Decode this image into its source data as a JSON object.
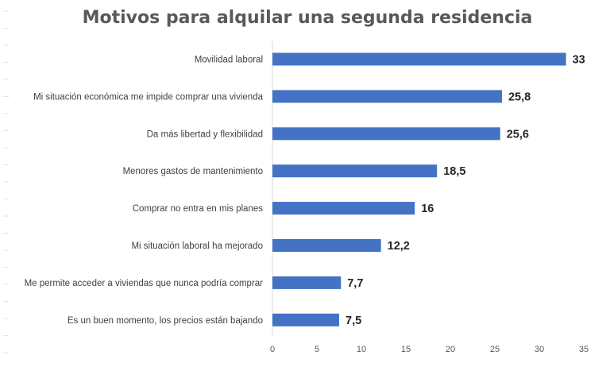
{
  "chart_data": {
    "type": "bar",
    "orientation": "horizontal",
    "title": "Motivos para alquilar una segunda residencia",
    "xlabel": "",
    "ylabel": "",
    "categories": [
      "Movilidad laboral",
      "Mi situación económica me impide comprar una vivienda",
      "Da más libertad y flexibilidad",
      "Menores gastos de mantenimiento",
      "Comprar no entra en mis planes",
      "Mi situación laboral ha mejorado",
      "Me permite acceder a viviendas que nunca podría comprar",
      "Es un buen momento, los precios están bajando"
    ],
    "values": [
      33,
      25.8,
      25.6,
      18.5,
      16,
      12.2,
      7.7,
      7.5
    ],
    "value_labels": [
      "33",
      "25,8",
      "25,6",
      "18,5",
      "16",
      "12,2",
      "7,7",
      "7,5"
    ],
    "xlim": [
      0,
      35
    ],
    "xticks": [
      "0",
      "5",
      "10",
      "15",
      "20",
      "25",
      "30",
      "35"
    ],
    "grid": false,
    "legend": "none",
    "bar_color": "#4472C4"
  }
}
